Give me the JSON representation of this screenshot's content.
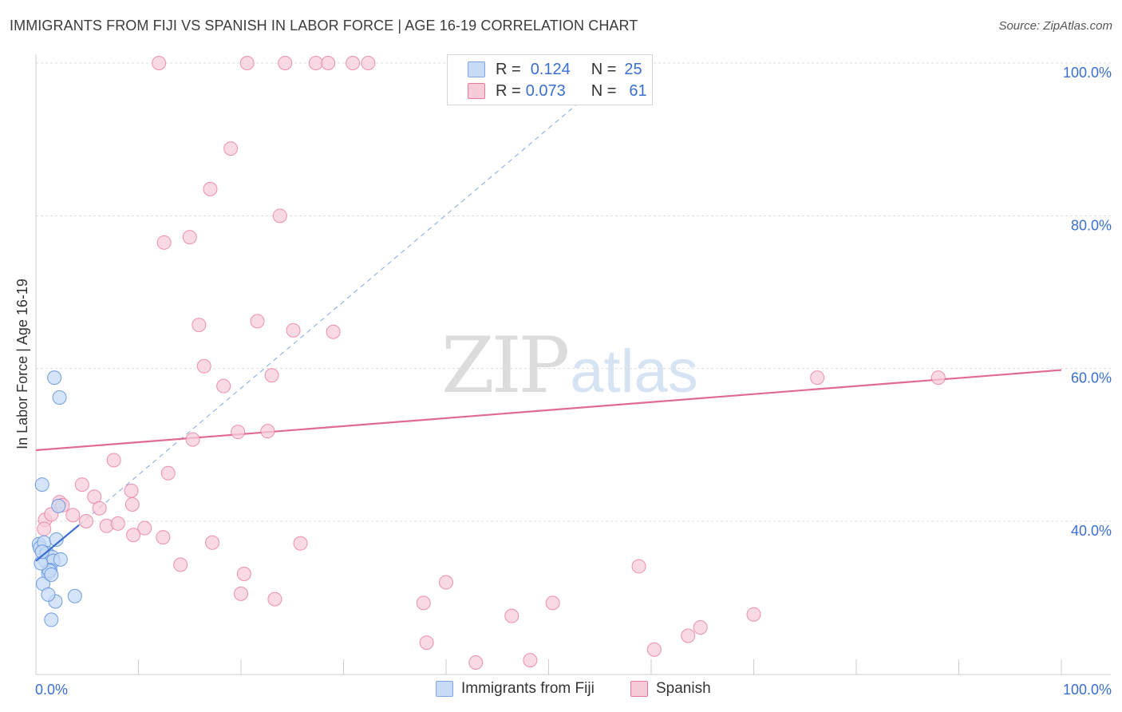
{
  "title": "IMMIGRANTS FROM FIJI VS SPANISH IN LABOR FORCE | AGE 16-19 CORRELATION CHART",
  "source": "Source: ZipAtlas.com",
  "watermark": {
    "zip": "ZIP",
    "atlas": "atlas"
  },
  "colors": {
    "blue": "#7ea8e8",
    "blue_fill": "#c7dbf6",
    "pink": "#e8789e",
    "pink_fill": "#f7ccd9",
    "axis_text": "#3a6fd0",
    "grid": "#dddddd"
  },
  "legend": [
    {
      "series": "Immigrants from Fiji",
      "r_label": "R =",
      "r_value": "0.124",
      "n_label": "N =",
      "n_value": "25"
    },
    {
      "series": "Spanish",
      "r_label": "R =",
      "r_value": "0.073",
      "n_label": "N =",
      "n_value": "61"
    }
  ],
  "chart_data": {
    "type": "scatter",
    "title": "IMMIGRANTS FROM FIJI VS SPANISH IN LABOR FORCE | AGE 16-19 CORRELATION CHART",
    "xlabel": "",
    "ylabel": "In Labor Force | Age 16-19",
    "xlim": [
      0,
      100
    ],
    "ylim": [
      19,
      102
    ],
    "x_tick_labels": [
      "0.0%",
      "100.0%"
    ],
    "y_ticks": [
      40,
      60,
      80,
      100
    ],
    "y_tick_labels": [
      "40.0%",
      "60.0%",
      "80.0%",
      "100.0%"
    ],
    "grid": true,
    "legend_position": "top-center",
    "series": [
      {
        "name": "Immigrants from Fiji",
        "color": "#7ea8e8",
        "x": [
          0.6,
          0.3,
          0.4,
          0.8,
          1.0,
          1.1,
          0.9,
          1.6,
          1.7,
          1.4,
          1.2,
          2.0,
          1.8,
          2.3,
          1.3,
          0.7,
          0.5,
          1.5,
          1.9,
          0.6,
          1.2,
          3.8,
          2.2,
          1.5,
          2.4
        ],
        "y": [
          44.8,
          37.0,
          36.5,
          37.2,
          35.7,
          35.8,
          34.8,
          35.3,
          34.8,
          33.6,
          33.2,
          37.6,
          58.8,
          56.2,
          33.5,
          31.8,
          34.5,
          33.0,
          29.5,
          36.0,
          30.4,
          30.2,
          42.0,
          27.1,
          35.0
        ],
        "trend": {
          "x": [
            0,
            4.2
          ],
          "y": [
            34.8,
            39.5
          ]
        },
        "trend_extended": {
          "x": [
            4.2,
            54
          ],
          "y": [
            39.5,
            96.0
          ]
        }
      },
      {
        "name": "Spanish",
        "color": "#e8789e",
        "x": [
          12,
          20.6,
          24.3,
          27.3,
          28.5,
          30.9,
          32.4,
          19.0,
          17.0,
          23.8,
          12.5,
          15.0,
          21.6,
          15.9,
          29.0,
          25.1,
          16.4,
          23.0,
          18.3,
          22.6,
          19.7,
          15.3,
          7.6,
          12.9,
          4.5,
          9.3,
          5.7,
          2.3,
          2.6,
          3.6,
          0.9,
          4.9,
          6.9,
          8.0,
          10.6,
          9.5,
          12.4,
          17.2,
          14.1,
          20.3,
          25.8,
          20.0,
          23.3,
          37.8,
          40.0,
          38.1,
          42.9,
          46.4,
          48.2,
          50.4,
          58.8,
          70.0,
          60.3,
          63.6,
          64.8,
          76.2,
          88.0,
          0.8,
          1.5,
          6.2,
          9.4
        ],
        "y": [
          100,
          100,
          100,
          100,
          100,
          100,
          100,
          88.8,
          83.5,
          80.0,
          76.5,
          77.2,
          66.2,
          65.7,
          64.8,
          65.0,
          60.3,
          59.1,
          57.7,
          51.8,
          51.7,
          50.7,
          48.0,
          46.3,
          44.8,
          44.0,
          43.2,
          42.5,
          42.1,
          40.8,
          40.2,
          40.0,
          39.4,
          39.7,
          39.1,
          38.2,
          37.9,
          37.2,
          34.3,
          33.1,
          37.1,
          30.5,
          29.8,
          29.3,
          32.0,
          24.1,
          21.5,
          27.6,
          21.8,
          29.3,
          34.1,
          27.8,
          23.2,
          25.0,
          26.1,
          58.8,
          58.8,
          39.0,
          40.9,
          41.7,
          42.2
        ],
        "trend": {
          "x": [
            0,
            100
          ],
          "y": [
            49.3,
            59.8
          ]
        }
      }
    ]
  }
}
